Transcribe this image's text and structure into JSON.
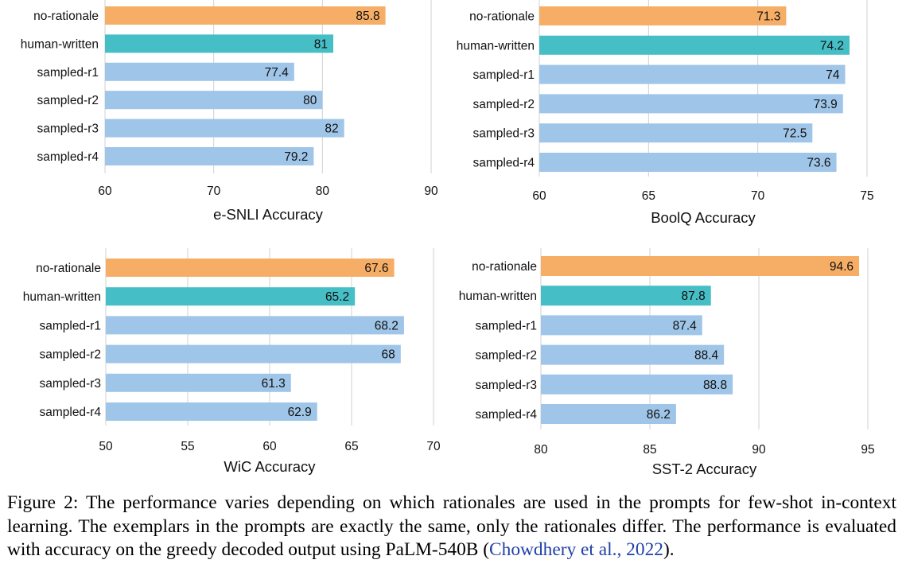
{
  "chart_data": [
    {
      "type": "bar",
      "orientation": "horizontal",
      "xlabel": "e-SNLI Accuracy",
      "categories": [
        "no-rationale",
        "human-written",
        "sampled-r1",
        "sampled-r2",
        "sampled-r3",
        "sampled-r4"
      ],
      "values": [
        85.8,
        81,
        77.4,
        80,
        82,
        79.2
      ],
      "value_labels": [
        "85.8",
        "81",
        "77.4",
        "80",
        "82",
        "79.2"
      ],
      "xlim": [
        60,
        90
      ],
      "xticks": [
        60,
        70,
        80,
        90
      ],
      "grid": true
    },
    {
      "type": "bar",
      "orientation": "horizontal",
      "xlabel": "BoolQ Accuracy",
      "categories": [
        "no-rationale",
        "human-written",
        "sampled-r1",
        "sampled-r2",
        "sampled-r3",
        "sampled-r4"
      ],
      "values": [
        71.3,
        74.2,
        74,
        73.9,
        72.5,
        73.6
      ],
      "value_labels": [
        "71.3",
        "74.2",
        "74",
        "73.9",
        "72.5",
        "73.6"
      ],
      "xlim": [
        60,
        75
      ],
      "xticks": [
        60,
        65,
        70,
        75
      ],
      "grid": true
    },
    {
      "type": "bar",
      "orientation": "horizontal",
      "xlabel": "WiC Accuracy",
      "categories": [
        "no-rationale",
        "human-written",
        "sampled-r1",
        "sampled-r2",
        "sampled-r3",
        "sampled-r4"
      ],
      "values": [
        67.6,
        65.2,
        68.2,
        68,
        61.3,
        62.9
      ],
      "value_labels": [
        "67.6",
        "65.2",
        "68.2",
        "68",
        "61.3",
        "62.9"
      ],
      "xlim": [
        50,
        70
      ],
      "xticks": [
        50,
        55,
        60,
        65,
        70
      ],
      "grid": true
    },
    {
      "type": "bar",
      "orientation": "horizontal",
      "xlabel": "SST-2 Accuracy",
      "categories": [
        "no-rationale",
        "human-written",
        "sampled-r1",
        "sampled-r2",
        "sampled-r3",
        "sampled-r4"
      ],
      "values": [
        94.6,
        87.8,
        87.4,
        88.4,
        88.8,
        86.2
      ],
      "value_labels": [
        "94.6",
        "87.8",
        "87.4",
        "88.4",
        "88.8",
        "86.2"
      ],
      "xlim": [
        80,
        95
      ],
      "xticks": [
        80,
        85,
        90,
        95
      ],
      "grid": true
    }
  ],
  "colors": {
    "no-rationale": "#f6ae66",
    "human-written": "#46bec6",
    "sampled": "#9fc5e8"
  },
  "caption": {
    "text": "Figure 2: The performance varies depending on which rationales are used in the prompts for few-shot in-context learning. The exemplars in the prompts are exactly the same, only the rationales differ. The performance is evaluated with accuracy on the greedy decoded output using PaLM-540B (",
    "citation": "Chowdhery et al., 2022",
    "suffix": ")."
  }
}
